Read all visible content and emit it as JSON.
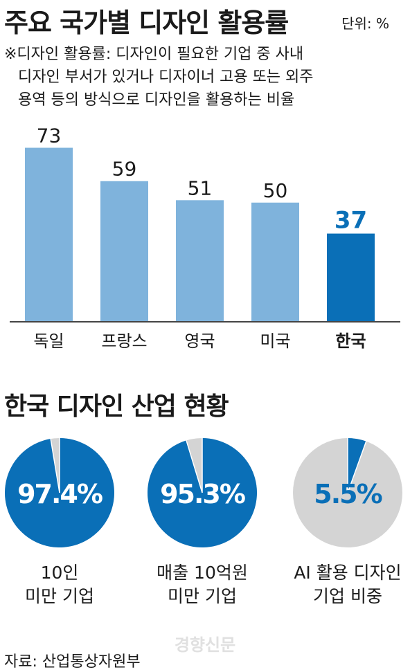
{
  "title": "주요 국가별 디자인 활용률",
  "unit_label": "단위: %",
  "note_lines": [
    "※디자인 활용률: 디자인이 필요한 기업 중 사내",
    "디자인 부서가 있거나 디자이너 고용 또는 외주",
    "용역 등의 방식으로 디자인을 활용하는 비율"
  ],
  "colors": {
    "bar": "#7fb3dc",
    "highlight": "#0a6fb7",
    "pie_bg": "#d4d4d4",
    "axis": "#444444",
    "text": "#1a1a1a"
  },
  "chart_data": [
    {
      "type": "bar",
      "title": "주요 국가별 디자인 활용률",
      "categories": [
        "독일",
        "프랑스",
        "영국",
        "미국",
        "한국"
      ],
      "values": [
        73,
        59,
        51,
        50,
        37
      ],
      "highlight_index": 4,
      "ylim": [
        0,
        80
      ],
      "grid": false,
      "unit": "%"
    },
    {
      "type": "pie",
      "title": "한국 디자인 산업 현황",
      "charts": [
        {
          "value": 97.4,
          "label": "97.4%",
          "caption": [
            "10인",
            "미만 기업"
          ]
        },
        {
          "value": 95.3,
          "label": "95.3%",
          "caption": [
            "매출 10억원",
            "미만 기업"
          ]
        },
        {
          "value": 5.5,
          "label": "5.5%",
          "caption": [
            "AI 활용 디자인",
            "기업 비중"
          ]
        }
      ]
    }
  ],
  "watermark": "경향신문",
  "source": "자료: 산업통상자원부"
}
